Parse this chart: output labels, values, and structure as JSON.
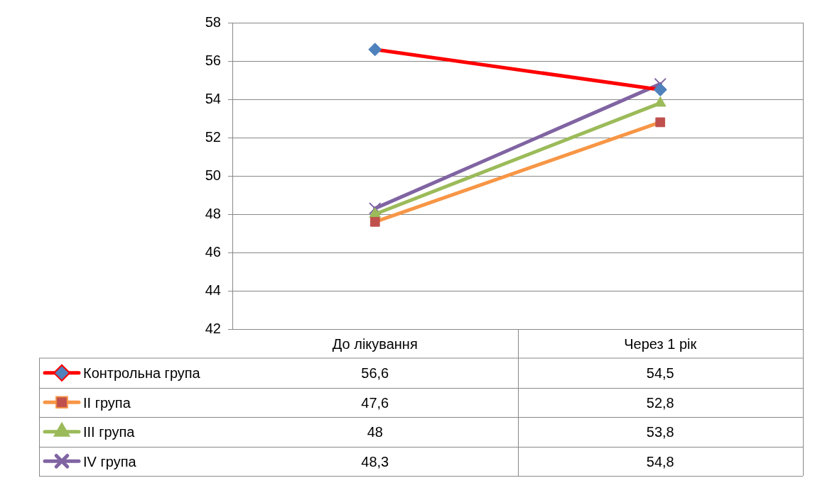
{
  "chart_data": {
    "type": "line",
    "categories": [
      "До лікування",
      "Через 1 рік"
    ],
    "ylim": [
      42,
      58
    ],
    "yticks": [
      42,
      44,
      46,
      48,
      50,
      52,
      54,
      56,
      58
    ],
    "grid": "y",
    "legend": "bottom",
    "series": [
      {
        "name": "Контрольна група",
        "color": "#ff0000",
        "colors": [
          "#4f81bd",
          "#4f81bd"
        ],
        "marker": "diamond",
        "values": [
          56.6,
          54.5
        ],
        "value_labels": [
          "56,6",
          "54,5"
        ]
      },
      {
        "name": "II група",
        "color": "#f79646",
        "colors": [
          "#c0504d",
          "#c0504d"
        ],
        "marker": "square",
        "values": [
          47.6,
          52.8
        ],
        "value_labels": [
          "47,6",
          "52,8"
        ]
      },
      {
        "name": "III група",
        "color": "#9bbb59",
        "colors": [
          "#9bbb59",
          "#9bbb59"
        ],
        "marker": "triangle",
        "values": [
          48,
          53.8
        ],
        "value_labels": [
          "48",
          "53,8"
        ]
      },
      {
        "name": "IV група",
        "color": "#8064a2",
        "colors": [
          "#8064a2",
          "#8064a2"
        ],
        "marker": "cross",
        "values": [
          48.3,
          54.8
        ],
        "value_labels": [
          "48,3",
          "54,8"
        ]
      }
    ]
  }
}
